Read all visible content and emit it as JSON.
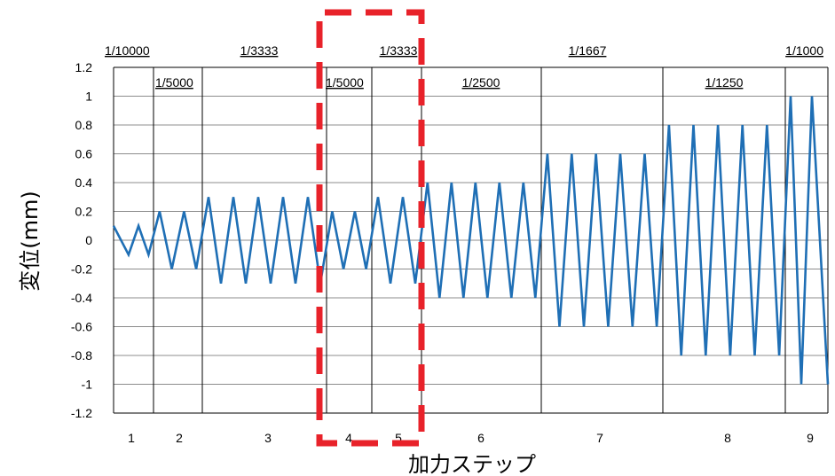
{
  "chart_data": {
    "type": "line",
    "xlabel": "加力ステップ",
    "ylabel": "変位(mm)",
    "ylim": [
      -1.2,
      1.2
    ],
    "y_ticks": [
      "1.2",
      "1",
      "0.8",
      "0.6",
      "0.4",
      "0.2",
      "0",
      "-0.2",
      "-0.4",
      "-0.6",
      "-0.8",
      "-1",
      "-1.2"
    ],
    "grid": true,
    "legend": "none",
    "series_color": "#1f6fb5",
    "highlight_color": "#e8222a",
    "steps": [
      {
        "label": "1",
        "ratio": "1/10000",
        "amplitude": 0.1,
        "cycles": 2
      },
      {
        "label": "2",
        "ratio": "1/5000",
        "amplitude": 0.2,
        "cycles": 2
      },
      {
        "label": "3",
        "ratio": "1/3333",
        "amplitude": 0.3,
        "cycles": 5
      },
      {
        "label": "4",
        "ratio": "1/5000",
        "amplitude": 0.2,
        "cycles": 2
      },
      {
        "label": "5",
        "ratio": "1/3333",
        "amplitude": 0.3,
        "cycles": 2
      },
      {
        "label": "6",
        "ratio": "1/2500",
        "amplitude": 0.4,
        "cycles": 5
      },
      {
        "label": "7",
        "ratio": "1/1667",
        "amplitude": 0.6,
        "cycles": 5
      },
      {
        "label": "8",
        "ratio": "1/1250",
        "amplitude": 0.8,
        "cycles": 5
      },
      {
        "label": "9",
        "ratio": "1/1000",
        "amplitude": 1.0,
        "cycles": 2
      }
    ],
    "highlighted_steps": [
      "4",
      "5"
    ]
  }
}
